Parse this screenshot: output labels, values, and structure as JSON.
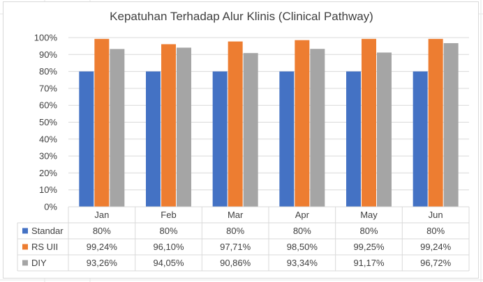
{
  "chart_data": {
    "type": "bar",
    "title": "Kepatuhan Terhadap Alur Klinis (Clinical Pathway)",
    "categories": [
      "Jan",
      "Feb",
      "Mar",
      "Apr",
      "May",
      "Jun"
    ],
    "series": [
      {
        "name": "Standar",
        "color": "#4472c4",
        "values": [
          80,
          80,
          80,
          80,
          80,
          80
        ],
        "labels": [
          "80%",
          "80%",
          "80%",
          "80%",
          "80%",
          "80%"
        ]
      },
      {
        "name": "RS UII",
        "color": "#ed7d31",
        "values": [
          99.24,
          96.1,
          97.71,
          98.5,
          99.25,
          99.24
        ],
        "labels": [
          "99,24%",
          "96,10%",
          "97,71%",
          "98,50%",
          "99,25%",
          "99,24%"
        ]
      },
      {
        "name": "DIY",
        "color": "#a5a5a5",
        "values": [
          93.26,
          94.05,
          90.86,
          93.34,
          91.17,
          96.72
        ],
        "labels": [
          "93,26%",
          "94,05%",
          "90,86%",
          "93,34%",
          "91,17%",
          "96,72%"
        ]
      }
    ],
    "yticks": [
      "0%",
      "10%",
      "20%",
      "30%",
      "40%",
      "50%",
      "60%",
      "70%",
      "80%",
      "90%",
      "100%"
    ],
    "ylim": [
      0,
      100
    ],
    "grid": true,
    "legend": "data-table-left"
  }
}
